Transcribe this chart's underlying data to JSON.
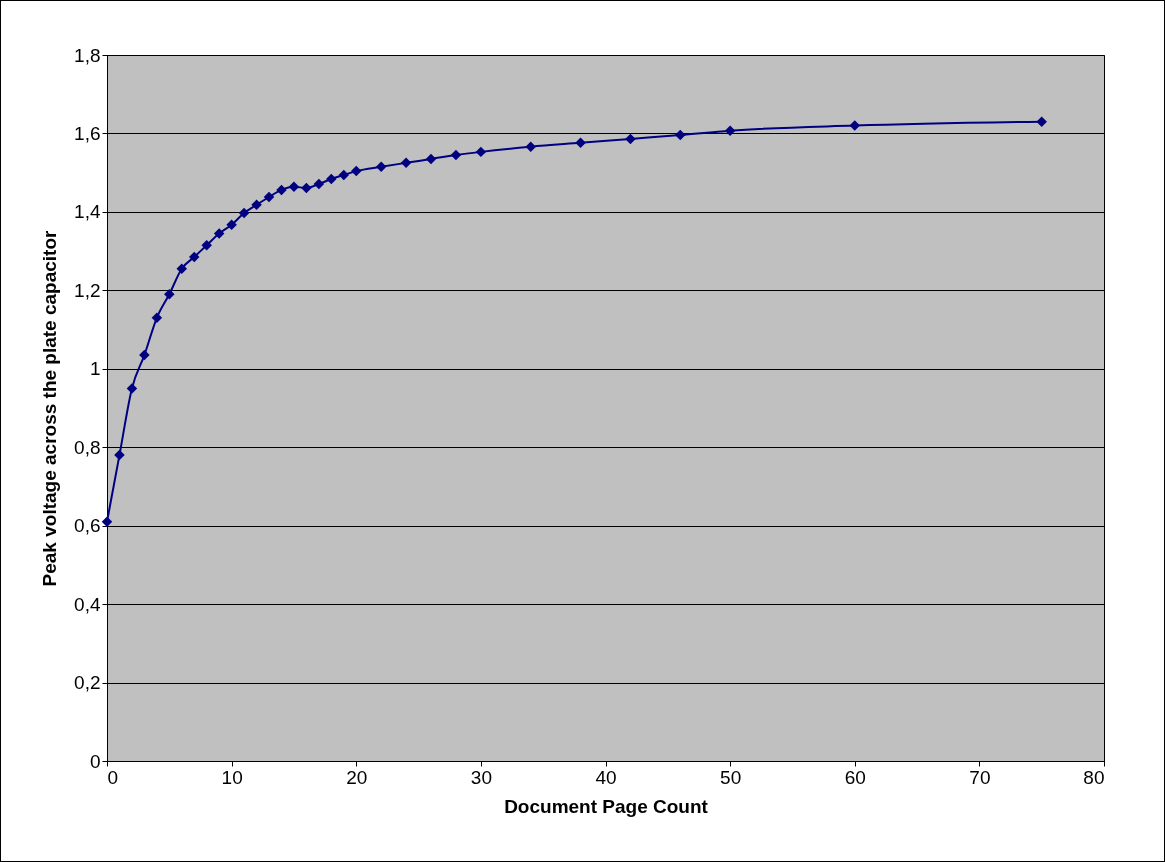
{
  "chart_data": {
    "type": "line",
    "xlabel": "Document Page Count",
    "ylabel": "Peak voltage across the plate capacitor",
    "x": [
      0,
      1,
      2,
      3,
      4,
      5,
      6,
      7,
      8,
      9,
      10,
      11,
      12,
      13,
      14,
      15,
      16,
      17,
      18,
      19,
      20,
      22,
      24,
      26,
      28,
      30,
      34,
      38,
      42,
      46,
      50,
      60,
      75
    ],
    "series": [
      {
        "color": "#000080",
        "values": [
          0.61,
          0.78,
          0.95,
          1.035,
          1.13,
          1.19,
          1.255,
          1.285,
          1.315,
          1.345,
          1.367,
          1.397,
          1.418,
          1.438,
          1.456,
          1.464,
          1.461,
          1.471,
          1.484,
          1.494,
          1.504,
          1.515,
          1.525,
          1.535,
          1.545,
          1.553,
          1.566,
          1.576,
          1.586,
          1.596,
          1.607,
          1.62,
          1.63
        ]
      }
    ],
    "xlim": [
      0,
      80
    ],
    "xticks": [
      0,
      10,
      20,
      30,
      40,
      50,
      60,
      70,
      80
    ],
    "ylim": [
      0,
      1.8
    ],
    "yticks": [
      0,
      {
        "value": 0.2,
        "label": "0,2"
      },
      {
        "value": 0.4,
        "label": "0,4"
      },
      {
        "value": 0.6,
        "label": "0,6"
      },
      {
        "value": 0.8,
        "label": "0,8"
      },
      1,
      {
        "value": 1.2,
        "label": "1,2"
      },
      {
        "value": 1.4,
        "label": "1,4"
      },
      {
        "value": 1.6,
        "label": "1,6"
      },
      {
        "value": 1.8,
        "label": "1,8"
      }
    ],
    "grid": "y",
    "legend": false,
    "marker": "diamond",
    "line_style": "solid"
  }
}
